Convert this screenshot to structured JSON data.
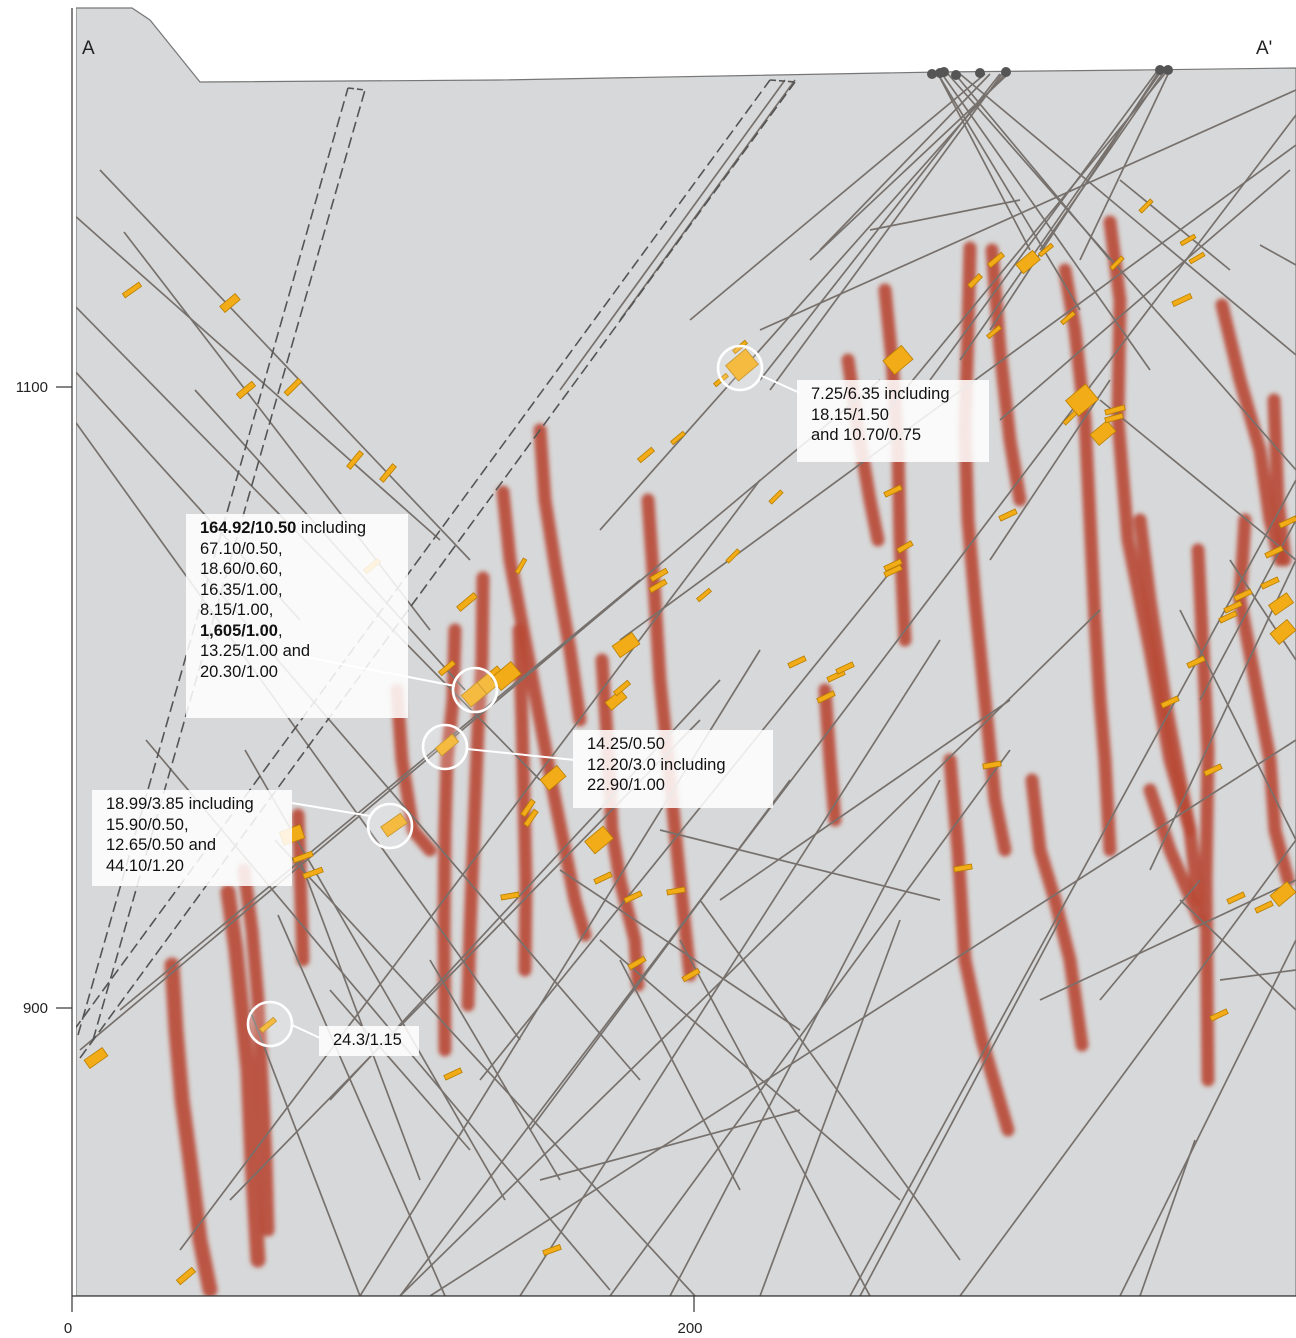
{
  "section_labels": {
    "start": "A",
    "end": "A'"
  },
  "elevation_axis": {
    "ticks": [
      "1100",
      "900"
    ]
  },
  "distance_axis": {
    "ticks": [
      "0",
      "200"
    ]
  },
  "colors": {
    "background": "#d7d8d9",
    "drillhole": "#77716d",
    "vein": "#b84a36",
    "intercept": "#f2ac17",
    "fault": "#555555",
    "collar": "#555555"
  },
  "callouts": [
    {
      "id": "c1",
      "lines": [
        {
          "parts": [
            {
              "text": "7.25/6.35",
              "bold": false
            },
            {
              "text": " including",
              "bold": false
            }
          ]
        },
        {
          "parts": [
            {
              "text": "18.15/1.50",
              "bold": false
            }
          ]
        },
        {
          "parts": [
            {
              "text": "and 10.70/0.75",
              "bold": false
            }
          ]
        }
      ]
    },
    {
      "id": "c2",
      "lines": [
        {
          "parts": [
            {
              "text": "164.92/10.50",
              "bold": true
            },
            {
              "text": " including",
              "bold": false
            }
          ]
        },
        {
          "parts": [
            {
              "text": "67.10/0.50,",
              "bold": false
            }
          ]
        },
        {
          "parts": [
            {
              "text": "18.60/0.60,",
              "bold": false
            }
          ]
        },
        {
          "parts": [
            {
              "text": "16.35/1.00,",
              "bold": false
            }
          ]
        },
        {
          "parts": [
            {
              "text": "8.15/1.00,",
              "bold": false
            }
          ]
        },
        {
          "parts": [
            {
              "text": "1,605/1.00",
              "bold": true
            },
            {
              "text": ",",
              "bold": false
            }
          ]
        },
        {
          "parts": [
            {
              "text": "13.25/1.00 and",
              "bold": false
            }
          ]
        },
        {
          "parts": [
            {
              "text": "20.30/1.00",
              "bold": false
            }
          ]
        }
      ]
    },
    {
      "id": "c3",
      "lines": [
        {
          "parts": [
            {
              "text": "14.25/0.50",
              "bold": false
            }
          ]
        },
        {
          "parts": [
            {
              "text": "12.20/3.0 including",
              "bold": false
            }
          ]
        },
        {
          "parts": [
            {
              "text": "22.90/1.00",
              "bold": false
            }
          ]
        }
      ]
    },
    {
      "id": "c4",
      "lines": [
        {
          "parts": [
            {
              "text": "18.99/3.85 including",
              "bold": false
            }
          ]
        },
        {
          "parts": [
            {
              "text": "15.90/0.50,",
              "bold": false
            }
          ]
        },
        {
          "parts": [
            {
              "text": "12.65/0.50 and",
              "bold": false
            }
          ]
        },
        {
          "parts": [
            {
              "text": "44.10/1.20",
              "bold": false
            }
          ]
        }
      ]
    },
    {
      "id": "c5",
      "lines": [
        {
          "parts": [
            {
              "text": "24.3/1.15",
              "bold": false
            }
          ]
        }
      ]
    }
  ]
}
